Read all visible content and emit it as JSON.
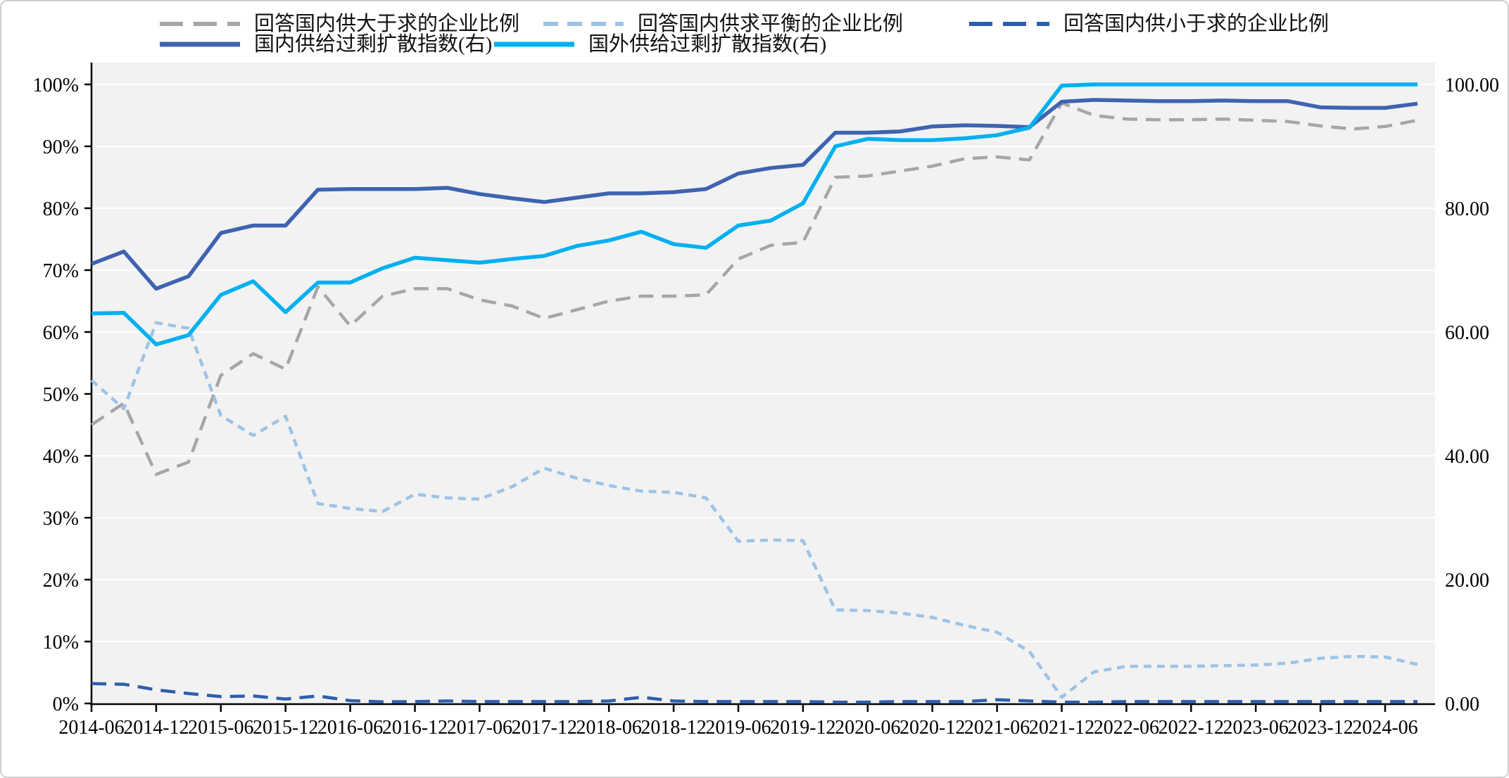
{
  "figure": {
    "kind": "dual-axis line chart",
    "plot_background_color": "#f2f2f2",
    "gridline_color": "#ffffff",
    "axis_line_color": "#000000"
  },
  "chart_data": {
    "type": "line",
    "title": "",
    "xlabel": "",
    "ylabel_left": "",
    "ylabel_right": "",
    "grid": true,
    "legend_position": "top",
    "x": [
      "2014-06",
      "2014-09",
      "2014-12",
      "2015-03",
      "2015-06",
      "2015-09",
      "2015-12",
      "2016-03",
      "2016-06",
      "2016-09",
      "2016-12",
      "2017-03",
      "2017-06",
      "2017-09",
      "2017-12",
      "2018-03",
      "2018-06",
      "2018-09",
      "2018-12",
      "2019-03",
      "2019-06",
      "2019-09",
      "2019-12",
      "2020-03",
      "2020-06",
      "2020-09",
      "2020-12",
      "2021-03",
      "2021-06",
      "2021-09",
      "2021-12",
      "2022-03",
      "2022-06",
      "2022-09",
      "2022-12",
      "2023-03",
      "2023-06",
      "2023-09",
      "2023-12",
      "2024-03",
      "2024-06",
      "2024-09"
    ],
    "x_axis_tick_labels": [
      "2014-06",
      "2014-12",
      "2015-06",
      "2015-12",
      "2016-06",
      "2016-12",
      "2017-06",
      "2017-12",
      "2018-06",
      "2018-12",
      "2019-06",
      "2019-12",
      "2020-06",
      "2020-12",
      "2021-06",
      "2021-12",
      "2022-06",
      "2022-12",
      "2023-06",
      "2023-12",
      "2024-06"
    ],
    "left_axis": {
      "min": 0,
      "max": 100,
      "ticks": [
        "0%",
        "10%",
        "20%",
        "30%",
        "40%",
        "50%",
        "60%",
        "70%",
        "80%",
        "90%",
        "100%"
      ]
    },
    "right_axis": {
      "min": 0,
      "max": 100,
      "ticks": [
        "0.00",
        "20.00",
        "40.00",
        "60.00",
        "80.00",
        "100.00"
      ]
    },
    "series": [
      {
        "name": "回答国内供大于求的企业比例",
        "axis": "left",
        "unit": "%",
        "color": "#a6a6a6",
        "line_style": "dashed",
        "values": [
          45,
          48.5,
          37,
          39,
          53,
          56.5,
          54,
          67.3,
          61,
          65.8,
          67,
          67,
          65.2,
          64.2,
          62.2,
          63.6,
          65,
          65.8,
          65.8,
          66,
          71.8,
          74,
          74.5,
          85,
          85.2,
          86,
          86.8,
          88,
          88.3,
          87.8,
          97,
          95,
          94.4,
          94.3,
          94.3,
          94.4,
          94.2,
          94,
          93.3,
          92.8,
          93.2,
          94.2
        ]
      },
      {
        "name": "回答国内供求平衡的企业比例",
        "axis": "left",
        "unit": "%",
        "color": "#9dc3e6",
        "line_style": "dashed-short",
        "values": [
          52.2,
          47.6,
          61.5,
          60.6,
          46.5,
          43.3,
          46.4,
          32.3,
          31.5,
          31,
          33.8,
          33.2,
          33,
          35,
          38,
          36.4,
          35.2,
          34.3,
          34.1,
          33.2,
          26.2,
          26.4,
          26.3,
          15.1,
          15,
          14.6,
          13.9,
          12.6,
          11.5,
          8.4,
          1,
          5.1,
          6,
          6,
          6,
          6.1,
          6.2,
          6.5,
          7.3,
          7.6,
          7.5,
          6.3
        ]
      },
      {
        "name": "回答国内供小于求的企业比例",
        "axis": "left",
        "unit": "%",
        "color": "#2e5fac",
        "line_style": "dashed",
        "values": [
          3.2,
          3.1,
          2.2,
          1.6,
          1.1,
          1.2,
          0.7,
          1.2,
          0.45,
          0.25,
          0.3,
          0.4,
          0.3,
          0.3,
          0.3,
          0.3,
          0.4,
          1,
          0.4,
          0.3,
          0.3,
          0.3,
          0.3,
          0.2,
          0.2,
          0.3,
          0.3,
          0.3,
          0.6,
          0.4,
          0.2,
          0.2,
          0.3,
          0.3,
          0.3,
          0.3,
          0.3,
          0.3,
          0.3,
          0.3,
          0.3,
          0.3
        ]
      },
      {
        "name": "国内供给过剩扩散指数(右)",
        "axis": "right",
        "unit": "index",
        "color": "#3f63b0",
        "line_style": "solid",
        "values": [
          71,
          73,
          67,
          69,
          76,
          77.2,
          77.2,
          83,
          83.1,
          83.1,
          83.1,
          83.3,
          82.3,
          81.6,
          81,
          81.7,
          82.4,
          82.4,
          82.6,
          83.1,
          85.6,
          86.5,
          87,
          92.2,
          92.2,
          92.4,
          93.2,
          93.4,
          93.3,
          93.1,
          97.2,
          97.5,
          97.4,
          97.3,
          97.3,
          97.4,
          97.3,
          97.3,
          96.3,
          96.2,
          96.2,
          96.9
        ]
      },
      {
        "name": "国外供给过剩扩散指数(右)",
        "axis": "right",
        "unit": "index",
        "color": "#00b0f0",
        "line_style": "solid",
        "values": [
          63,
          63.1,
          58,
          59.5,
          66,
          68.2,
          63.2,
          68,
          68,
          70.3,
          72,
          71.6,
          71.2,
          71.8,
          72.3,
          73.9,
          74.8,
          76.2,
          74.2,
          73.6,
          77.2,
          78,
          80.8,
          90,
          91.2,
          91,
          91,
          91.3,
          91.8,
          93,
          99.8,
          100,
          100,
          100,
          100,
          100,
          100,
          100,
          100,
          100,
          100,
          100
        ]
      }
    ]
  }
}
